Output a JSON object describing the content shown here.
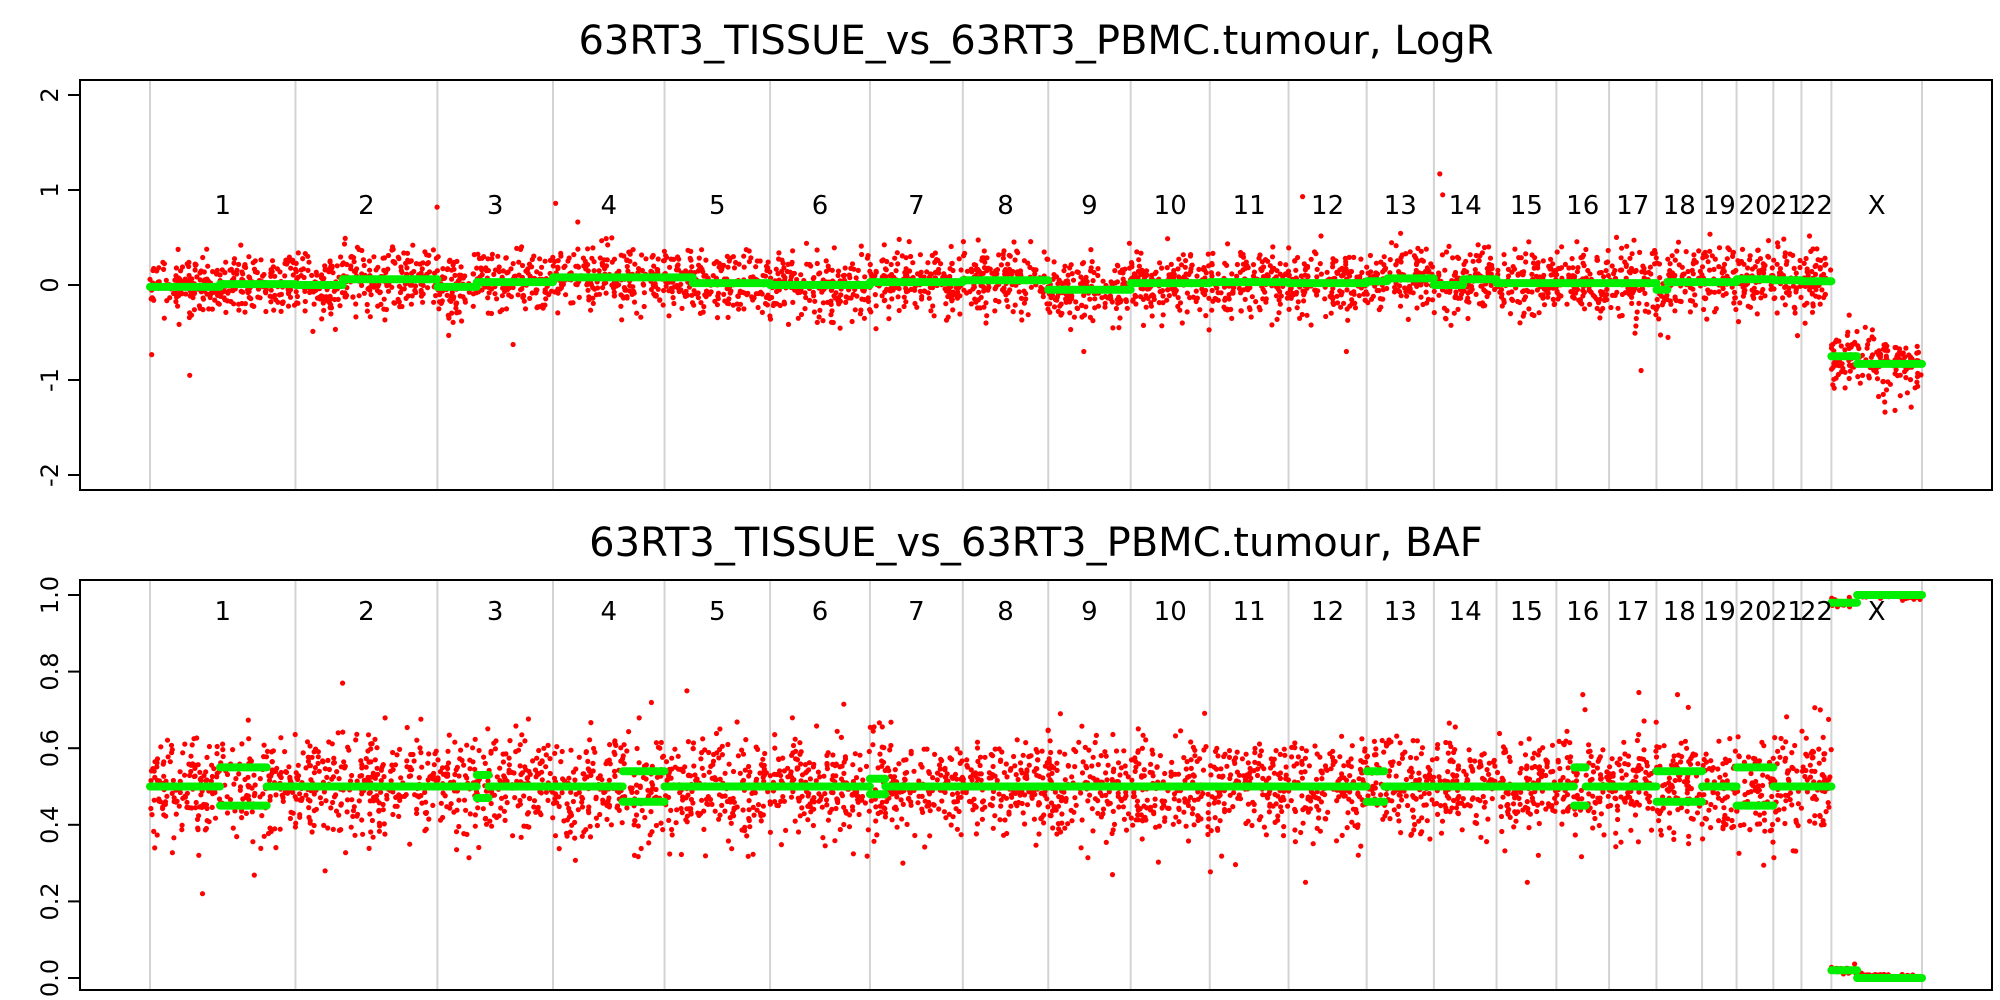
{
  "colors": {
    "points": "#ff0000",
    "segments": "#00ee00",
    "boundary": "#d3d3d3"
  },
  "chromosomes": [
    {
      "name": "1",
      "start": 0,
      "end": 249250
    },
    {
      "name": "2",
      "start": 249250,
      "end": 492450
    },
    {
      "name": "3",
      "start": 492450,
      "end": 690470
    },
    {
      "name": "4",
      "start": 690470,
      "end": 881630
    },
    {
      "name": "5",
      "start": 881630,
      "end": 1062500
    },
    {
      "name": "6",
      "start": 1062500,
      "end": 1233610
    },
    {
      "name": "7",
      "start": 1233610,
      "end": 1392750
    },
    {
      "name": "8",
      "start": 1392750,
      "end": 1539120
    },
    {
      "name": "9",
      "start": 1539120,
      "end": 1680330
    },
    {
      "name": "10",
      "start": 1680330,
      "end": 1815860
    },
    {
      "name": "11",
      "start": 1815860,
      "end": 1950870
    },
    {
      "name": "12",
      "start": 1950870,
      "end": 2084720
    },
    {
      "name": "13",
      "start": 2084720,
      "end": 2199890
    },
    {
      "name": "14",
      "start": 2199890,
      "end": 2307240
    },
    {
      "name": "15",
      "start": 2307240,
      "end": 2409770
    },
    {
      "name": "16",
      "start": 2409770,
      "end": 2500120
    },
    {
      "name": "17",
      "start": 2500120,
      "end": 2581320
    },
    {
      "name": "18",
      "start": 2581320,
      "end": 2659400
    },
    {
      "name": "19",
      "start": 2659400,
      "end": 2718530
    },
    {
      "name": "20",
      "start": 2718530,
      "end": 2781560
    },
    {
      "name": "21",
      "start": 2781560,
      "end": 2829690
    },
    {
      "name": "22",
      "start": 2829690,
      "end": 2881000
    },
    {
      "name": "X",
      "start": 2881000,
      "end": 3036270
    }
  ],
  "chart_data": [
    {
      "type": "scatter",
      "title": "63RT3_TISSUE_vs_63RT3_PBMC.tumour, LogR",
      "ylim": [
        -2.0,
        2.0
      ],
      "yticks": [
        -2,
        -1,
        0,
        1,
        2
      ],
      "ytick_labels": [
        "-2",
        "-1",
        "0",
        "1",
        "2"
      ],
      "x_unit": "genomic position (kb, cumulative)",
      "grid": false,
      "series": [
        {
          "role": "segments",
          "segments": [
            {
              "chrom": "1",
              "x0": 0,
              "x1": 120000,
              "y": -0.02
            },
            {
              "chrom": "1",
              "x0": 120000,
              "x1": 249250,
              "y": 0.01
            },
            {
              "chrom": "2",
              "x0": 249250,
              "x1": 330000,
              "y": 0.0
            },
            {
              "chrom": "2",
              "x0": 330000,
              "x1": 492450,
              "y": 0.06
            },
            {
              "chrom": "3",
              "x0": 492450,
              "x1": 560000,
              "y": -0.02
            },
            {
              "chrom": "3",
              "x0": 560000,
              "x1": 690470,
              "y": 0.03
            },
            {
              "chrom": "4",
              "x0": 690470,
              "x1": 881630,
              "y": 0.08
            },
            {
              "chrom": "5",
              "x0": 881630,
              "x1": 930000,
              "y": 0.08
            },
            {
              "chrom": "5",
              "x0": 930000,
              "x1": 1062500,
              "y": 0.02
            },
            {
              "chrom": "6",
              "x0": 1062500,
              "x1": 1233610,
              "y": 0.0
            },
            {
              "chrom": "7",
              "x0": 1233610,
              "x1": 1392750,
              "y": 0.03
            },
            {
              "chrom": "8",
              "x0": 1392750,
              "x1": 1539120,
              "y": 0.05
            },
            {
              "chrom": "9",
              "x0": 1539120,
              "x1": 1680330,
              "y": -0.05
            },
            {
              "chrom": "10",
              "x0": 1680330,
              "x1": 1815860,
              "y": 0.02
            },
            {
              "chrom": "11",
              "x0": 1815860,
              "x1": 1950870,
              "y": 0.03
            },
            {
              "chrom": "12",
              "x0": 1950870,
              "x1": 2084720,
              "y": 0.02
            },
            {
              "chrom": "13",
              "x0": 2084720,
              "x1": 2120000,
              "y": 0.04
            },
            {
              "chrom": "13",
              "x0": 2120000,
              "x1": 2199890,
              "y": 0.07
            },
            {
              "chrom": "14",
              "x0": 2199890,
              "x1": 2250000,
              "y": 0.0
            },
            {
              "chrom": "14",
              "x0": 2250000,
              "x1": 2307240,
              "y": 0.06
            },
            {
              "chrom": "15",
              "x0": 2307240,
              "x1": 2409770,
              "y": 0.02
            },
            {
              "chrom": "16",
              "x0": 2409770,
              "x1": 2500120,
              "y": 0.02
            },
            {
              "chrom": "17",
              "x0": 2500120,
              "x1": 2581320,
              "y": 0.02
            },
            {
              "chrom": "18",
              "x0": 2581320,
              "x1": 2600000,
              "y": -0.05
            },
            {
              "chrom": "18",
              "x0": 2600000,
              "x1": 2659400,
              "y": 0.03
            },
            {
              "chrom": "19",
              "x0": 2659400,
              "x1": 2718530,
              "y": 0.03
            },
            {
              "chrom": "20",
              "x0": 2718530,
              "x1": 2781560,
              "y": 0.06
            },
            {
              "chrom": "21",
              "x0": 2781560,
              "x1": 2829690,
              "y": 0.05
            },
            {
              "chrom": "22",
              "x0": 2829690,
              "x1": 2881000,
              "y": 0.04
            },
            {
              "chrom": "X",
              "x0": 2881000,
              "x1": 2925000,
              "y": -0.75
            },
            {
              "chrom": "X",
              "x0": 2925000,
              "x1": 3036270,
              "y": -0.83
            }
          ]
        },
        {
          "role": "points",
          "n_points_shown": "dense scatter, approx. 3600 probes",
          "spread_sd": 0.17,
          "outliers": [
            {
              "chrom": "1",
              "x": 68000,
              "y": -0.95
            },
            {
              "chrom": "12",
              "x": 1975000,
              "y": 0.93
            },
            {
              "chrom": "14",
              "x": 2210000,
              "y": 1.17
            },
            {
              "chrom": "14",
              "x": 2215000,
              "y": 0.95
            },
            {
              "chrom": "17",
              "x": 2555000,
              "y": -0.9
            },
            {
              "chrom": "4",
              "x": 695000,
              "y": 0.86
            },
            {
              "chrom": "3",
              "x": 492000,
              "y": 0.82
            },
            {
              "chrom": "9",
              "x": 1600000,
              "y": -0.7
            },
            {
              "chrom": "12",
              "x": 2050000,
              "y": -0.7
            },
            {
              "chrom": "X",
              "x": 2990000,
              "y": -1.32
            }
          ]
        }
      ]
    },
    {
      "type": "scatter",
      "title": "63RT3_TISSUE_vs_63RT3_PBMC.tumour, BAF",
      "ylim": [
        0.0,
        1.0
      ],
      "yticks": [
        0.0,
        0.2,
        0.4,
        0.6,
        0.8,
        1.0
      ],
      "ytick_labels": [
        "0.0",
        "0.2",
        "0.4",
        "0.6",
        "0.8",
        "1.0"
      ],
      "x_unit": "genomic position (kb, cumulative)",
      "grid": false,
      "series": [
        {
          "role": "segments",
          "segments": [
            {
              "chrom": "1",
              "x0": 0,
              "x1": 120000,
              "y": 0.5
            },
            {
              "chrom": "1",
              "x0": 120000,
              "x1": 200000,
              "y": 0.55
            },
            {
              "chrom": "1",
              "x0": 120000,
              "x1": 200000,
              "y": 0.45
            },
            {
              "chrom": "1",
              "x0": 200000,
              "x1": 249250,
              "y": 0.5
            },
            {
              "chrom": "2",
              "x0": 249250,
              "x1": 492450,
              "y": 0.5
            },
            {
              "chrom": "3",
              "x0": 492450,
              "x1": 560000,
              "y": 0.5
            },
            {
              "chrom": "3",
              "x0": 560000,
              "x1": 580000,
              "y": 0.53
            },
            {
              "chrom": "3",
              "x0": 560000,
              "x1": 580000,
              "y": 0.47
            },
            {
              "chrom": "3",
              "x0": 580000,
              "x1": 690470,
              "y": 0.5
            },
            {
              "chrom": "4",
              "x0": 690470,
              "x1": 810000,
              "y": 0.5
            },
            {
              "chrom": "4",
              "x0": 810000,
              "x1": 881630,
              "y": 0.54
            },
            {
              "chrom": "4",
              "x0": 810000,
              "x1": 881630,
              "y": 0.46
            },
            {
              "chrom": "5",
              "x0": 881630,
              "x1": 1062500,
              "y": 0.5
            },
            {
              "chrom": "6",
              "x0": 1062500,
              "x1": 1233610,
              "y": 0.5
            },
            {
              "chrom": "7",
              "x0": 1233610,
              "x1": 1260000,
              "y": 0.52
            },
            {
              "chrom": "7",
              "x0": 1233610,
              "x1": 1260000,
              "y": 0.48
            },
            {
              "chrom": "7",
              "x0": 1260000,
              "x1": 1392750,
              "y": 0.5
            },
            {
              "chrom": "8",
              "x0": 1392750,
              "x1": 1539120,
              "y": 0.5
            },
            {
              "chrom": "9",
              "x0": 1539120,
              "x1": 1680330,
              "y": 0.5
            },
            {
              "chrom": "10",
              "x0": 1680330,
              "x1": 1815860,
              "y": 0.5
            },
            {
              "chrom": "11",
              "x0": 1815860,
              "x1": 1950870,
              "y": 0.5
            },
            {
              "chrom": "12",
              "x0": 1950870,
              "x1": 2084720,
              "y": 0.5
            },
            {
              "chrom": "13",
              "x0": 2084720,
              "x1": 2115000,
              "y": 0.54
            },
            {
              "chrom": "13",
              "x0": 2084720,
              "x1": 2115000,
              "y": 0.46
            },
            {
              "chrom": "13",
              "x0": 2115000,
              "x1": 2199890,
              "y": 0.5
            },
            {
              "chrom": "14",
              "x0": 2199890,
              "x1": 2307240,
              "y": 0.5
            },
            {
              "chrom": "15",
              "x0": 2307240,
              "x1": 2409770,
              "y": 0.5
            },
            {
              "chrom": "16",
              "x0": 2409770,
              "x1": 2440000,
              "y": 0.5
            },
            {
              "chrom": "16",
              "x0": 2440000,
              "x1": 2460000,
              "y": 0.55
            },
            {
              "chrom": "16",
              "x0": 2440000,
              "x1": 2460000,
              "y": 0.45
            },
            {
              "chrom": "16",
              "x0": 2460000,
              "x1": 2500120,
              "y": 0.5
            },
            {
              "chrom": "17",
              "x0": 2500120,
              "x1": 2581320,
              "y": 0.5
            },
            {
              "chrom": "18",
              "x0": 2581320,
              "x1": 2659400,
              "y": 0.54
            },
            {
              "chrom": "18",
              "x0": 2581320,
              "x1": 2659400,
              "y": 0.46
            },
            {
              "chrom": "19",
              "x0": 2659400,
              "x1": 2718530,
              "y": 0.5
            },
            {
              "chrom": "20",
              "x0": 2718530,
              "x1": 2781560,
              "y": 0.55
            },
            {
              "chrom": "20",
              "x0": 2718530,
              "x1": 2781560,
              "y": 0.45
            },
            {
              "chrom": "21",
              "x0": 2781560,
              "x1": 2829690,
              "y": 0.5
            },
            {
              "chrom": "22",
              "x0": 2829690,
              "x1": 2881000,
              "y": 0.5
            },
            {
              "chrom": "X",
              "x0": 2881000,
              "x1": 2925000,
              "y": 0.98
            },
            {
              "chrom": "X",
              "x0": 2881000,
              "x1": 2925000,
              "y": 0.02
            },
            {
              "chrom": "X",
              "x0": 2925000,
              "x1": 3036270,
              "y": 1.0
            },
            {
              "chrom": "X",
              "x0": 2925000,
              "x1": 3036270,
              "y": 0.0
            }
          ]
        },
        {
          "role": "points",
          "n_points_shown": "dense scatter, approx. 3600 SNPs",
          "spread_sd": 0.065,
          "outliers": [
            {
              "chrom": "1",
              "x": 90000,
              "y": 0.22
            },
            {
              "chrom": "2",
              "x": 330000,
              "y": 0.77
            },
            {
              "chrom": "5",
              "x": 920000,
              "y": 0.75
            },
            {
              "chrom": "9",
              "x": 1560000,
              "y": 0.69
            },
            {
              "chrom": "12",
              "x": 1980000,
              "y": 0.25
            },
            {
              "chrom": "15",
              "x": 2360000,
              "y": 0.25
            },
            {
              "chrom": "16",
              "x": 2455000,
              "y": 0.74
            },
            {
              "chrom": "22",
              "x": 2862000,
              "y": 0.7
            },
            {
              "chrom": "2",
              "x": 300000,
              "y": 0.28
            },
            {
              "chrom": "7",
              "x": 1290000,
              "y": 0.3
            }
          ]
        }
      ]
    }
  ]
}
